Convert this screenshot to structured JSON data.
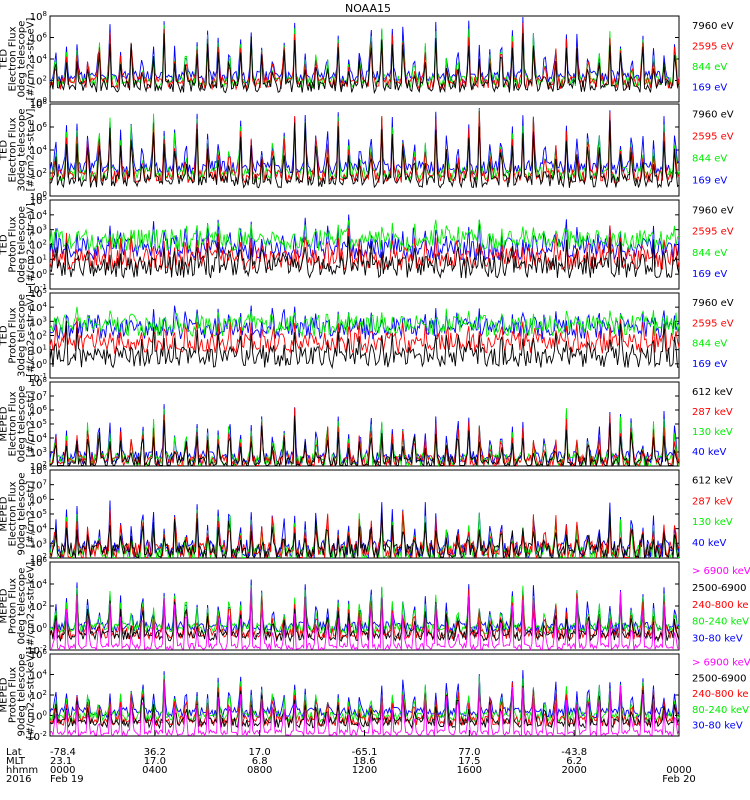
{
  "chart_data": {
    "type": "line",
    "title": "NOAA15",
    "colors": {
      "black": "#000000",
      "red": "#ff0000",
      "green": "#00ee00",
      "blue": "#0000ff",
      "magenta": "#ff00ff"
    },
    "x_axis": {
      "row_labels": [
        "Lat",
        "MLT",
        "hhmm",
        "2016"
      ],
      "ticks": [
        {
          "lat": "-78.4",
          "mlt": "23.1",
          "hhmm": "0000",
          "date": "Feb 19"
        },
        {
          "lat": "36.2",
          "mlt": "17.0",
          "hhmm": "0400",
          "date": ""
        },
        {
          "lat": "17.0",
          "mlt": "6.8",
          "hhmm": "0800",
          "date": ""
        },
        {
          "lat": "-65.1",
          "mlt": "18.6",
          "hhmm": "1200",
          "date": ""
        },
        {
          "lat": "77.0",
          "mlt": "17.5",
          "hhmm": "1600",
          "date": ""
        },
        {
          "lat": "-43.8",
          "mlt": "6.2",
          "hhmm": "2000",
          "date": ""
        },
        {
          "lat": "",
          "mlt": "",
          "hhmm": "0000",
          "date": "Feb 20"
        }
      ]
    },
    "panels": [
      {
        "ylabel": [
          "TED",
          "Electron Flux",
          "0deg telescope",
          "[#/cm2-s-str-eV]"
        ],
        "yscale": "log",
        "ylim": [
          1,
          100000000
        ],
        "yticks": [
          "10^0",
          "10^2",
          "10^4",
          "10^6",
          "10^8"
        ],
        "baselines": {
          "blue": 200,
          "green": 80,
          "red": 60,
          "black": 30
        },
        "peak": 8,
        "spread": 1.2,
        "seed": 11,
        "series": [
          {
            "name": "7960 eV",
            "color": "black"
          },
          {
            "name": "2595 eV",
            "color": "red"
          },
          {
            "name": "844 eV",
            "color": "green"
          },
          {
            "name": "169 eV",
            "color": "blue"
          }
        ]
      },
      {
        "ylabel": [
          "TED",
          "Electron Flux",
          "30deg telescope",
          "[#/cm2-s-str-eV]"
        ],
        "yscale": "log",
        "ylim": [
          1,
          100000000
        ],
        "yticks": [
          "10^0",
          "10^2",
          "10^4",
          "10^6",
          "10^8"
        ],
        "baselines": {
          "blue": 300,
          "green": 80,
          "red": 50,
          "black": 20
        },
        "peak": 8,
        "spread": 1.2,
        "seed": 23,
        "series": [
          {
            "name": "7960 eV",
            "color": "black"
          },
          {
            "name": "2595 eV",
            "color": "red"
          },
          {
            "name": "844 eV",
            "color": "green"
          },
          {
            "name": "169 eV",
            "color": "blue"
          }
        ]
      },
      {
        "ylabel": [
          "TED",
          "Proton Flux",
          "0deg telescope",
          "[#/cm2-s-str-eV]"
        ],
        "yscale": "log",
        "ylim": [
          0.1,
          100000
        ],
        "yticks": [
          "10^-1",
          "10^0",
          "10^1",
          "10^2",
          "10^3",
          "10^4",
          "10^5"
        ],
        "baselines": {
          "blue": 50,
          "green": 200,
          "red": 10,
          "black": 3
        },
        "peak": 3.5,
        "spread": 1.5,
        "seed": 37,
        "series": [
          {
            "name": "7960 eV",
            "color": "black"
          },
          {
            "name": "2595 eV",
            "color": "red"
          },
          {
            "name": "844 eV",
            "color": "green"
          },
          {
            "name": "169 eV",
            "color": "blue"
          }
        ]
      },
      {
        "ylabel": [
          "TED",
          "Proton Flux",
          "30deg telescope",
          "[#/cm2-s-str-eV]"
        ],
        "yscale": "log",
        "ylim": [
          0.1,
          100000
        ],
        "yticks": [
          "10^-1",
          "10^0",
          "10^1",
          "10^2",
          "10^3",
          "10^4",
          "10^5"
        ],
        "baselines": {
          "blue": 300,
          "green": 500,
          "red": 30,
          "black": 3
        },
        "peak": 3.8,
        "spread": 1.5,
        "seed": 41,
        "series": [
          {
            "name": "7960 eV",
            "color": "black"
          },
          {
            "name": "2595 eV",
            "color": "red"
          },
          {
            "name": "844 eV",
            "color": "green"
          },
          {
            "name": "169 eV",
            "color": "blue"
          }
        ]
      },
      {
        "ylabel": [
          "MEPED",
          "Electron Flux",
          "0deg telescope",
          "[#/cm2-s-str]"
        ],
        "yscale": "log",
        "ylim": [
          100,
          100000000
        ],
        "yticks": [
          "10^2",
          "10^3",
          "10^4",
          "10^5",
          "10^6",
          "10^7",
          "10^8"
        ],
        "baselines": {
          "blue": 400,
          "green": 250,
          "red": 200,
          "black": 150
        },
        "peak": 6.8,
        "spread": 1.0,
        "seed": 53,
        "series": [
          {
            "name": "612 keV",
            "color": "black"
          },
          {
            "name": "287 keV",
            "color": "red"
          },
          {
            "name": "130 keV",
            "color": "green"
          },
          {
            "name": "40 keV",
            "color": "blue"
          }
        ]
      },
      {
        "ylabel": [
          "MEPED",
          "Electron Flux",
          "90deg telescope",
          "[#/cm2-s-str]"
        ],
        "yscale": "log",
        "ylim": [
          100,
          100000000
        ],
        "yticks": [
          "10^2",
          "10^3",
          "10^4",
          "10^5",
          "10^6",
          "10^7",
          "10^8"
        ],
        "baselines": {
          "blue": 400,
          "green": 180,
          "red": 300,
          "black": 250
        },
        "peak": 6.5,
        "spread": 1.3,
        "seed": 67,
        "series": [
          {
            "name": "612 keV",
            "color": "black"
          },
          {
            "name": "287 keV",
            "color": "red"
          },
          {
            "name": "130 keV",
            "color": "green"
          },
          {
            "name": "40 keV",
            "color": "blue"
          }
        ]
      },
      {
        "ylabel": [
          "MEPED",
          "Proton Flux",
          "0deg telescope",
          "[#/cm2-s-str-keV]"
        ],
        "yscale": "log",
        "ylim": [
          0.01,
          1000000
        ],
        "yticks": [
          "10^-2",
          "10^0",
          "10^2",
          "10^4",
          "10^6"
        ],
        "baselines": {
          "blue": 1.2,
          "green": 0.9,
          "red": 0.3,
          "black": 0.2,
          "magenta": 0.02
        },
        "peak": 4.5,
        "spread": 1.0,
        "seed": 79,
        "series": [
          {
            "name": "> 6900 keV",
            "color": "magenta"
          },
          {
            "name": "2500-6900",
            "color": "black"
          },
          {
            "name": "240-800 ke",
            "color": "red"
          },
          {
            "name": "80-240 keV",
            "color": "green"
          },
          {
            "name": "30-80 keV",
            "color": "blue"
          }
        ]
      },
      {
        "ylabel": [
          "MEPED",
          "Proton Flux",
          "90deg telescope",
          "[#/cm2-s-str-keV]"
        ],
        "yscale": "log",
        "ylim": [
          0.01,
          1000000
        ],
        "yticks": [
          "10^-2",
          "10^0",
          "10^2",
          "10^4",
          "10^6"
        ],
        "baselines": {
          "blue": 2,
          "green": 0.8,
          "red": 0.3,
          "black": 0.2,
          "magenta": 0.02
        },
        "peak": 4.5,
        "spread": 1.0,
        "seed": 97,
        "series": [
          {
            "name": "> 6900 keV",
            "color": "magenta"
          },
          {
            "name": "2500-6900",
            "color": "black"
          },
          {
            "name": "240-800 ke",
            "color": "red"
          },
          {
            "name": "80-240 keV",
            "color": "green"
          },
          {
            "name": "30-80 keV",
            "color": "blue"
          }
        ]
      }
    ]
  }
}
